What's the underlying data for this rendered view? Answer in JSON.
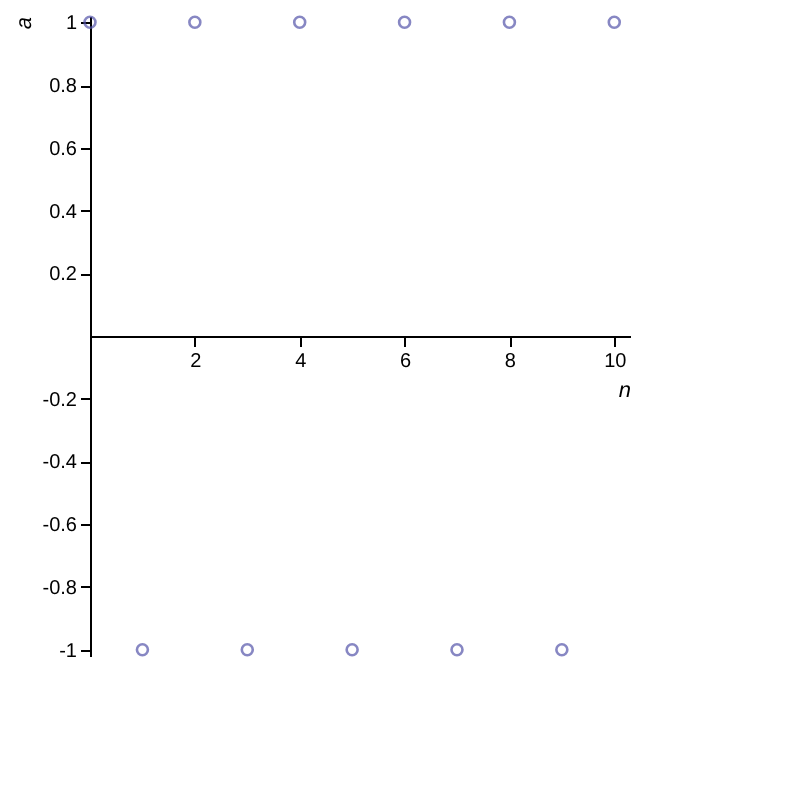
{
  "chart_data": {
    "type": "scatter",
    "xlabel": "n",
    "ylabel": "a",
    "x": [
      0,
      1,
      2,
      3,
      4,
      5,
      6,
      7,
      8,
      9,
      10
    ],
    "series": [
      {
        "color": "#5555aa",
        "values": [
          1,
          -1,
          1,
          -1,
          1,
          -1,
          1,
          -1,
          1,
          -1,
          1
        ]
      }
    ],
    "xlim": [
      0,
      10.3
    ],
    "ylim": [
      -1.02,
      1.02
    ],
    "xticks": [
      2,
      4,
      6,
      8,
      10
    ],
    "yticks": [
      -1,
      -0.8,
      -0.6,
      -0.4,
      -0.2,
      0.2,
      0.4,
      0.6,
      0.8,
      1
    ],
    "marker": "circle",
    "grid": false,
    "legend": false
  }
}
